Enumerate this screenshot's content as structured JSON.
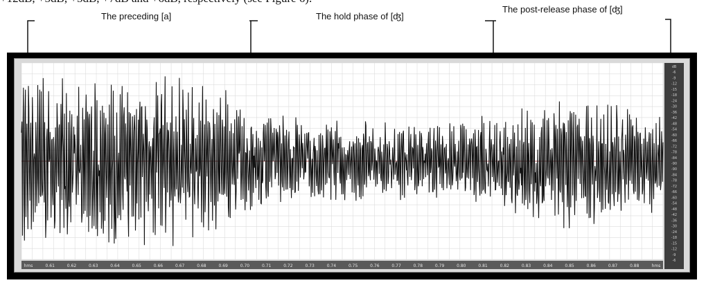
{
  "page": {
    "top_text": "+12dB, +5dB, +5dB, +7dB and +6dB, respectively (see Figure 6).",
    "annotations": [
      {
        "label": "The preceding [a]"
      },
      {
        "label": "The hold phase of [ʤ]"
      },
      {
        "label": "The post-release phase of [ʤ]"
      }
    ]
  },
  "figure": {
    "x_tick_labels": [
      "hms",
      "0.61",
      "0.62",
      "0.63",
      "0.64",
      "0.65",
      "0.66",
      "0.67",
      "0.68",
      "0.69",
      "0.70",
      "0.71",
      "0.72",
      "0.73",
      "0.74",
      "0.75",
      "0.76",
      "0.77",
      "0.78",
      "0.79",
      "0.80",
      "0.81",
      "0.82",
      "0.83",
      "0.84",
      "0.85",
      "0.86",
      "0.87",
      "0.88",
      "hms"
    ],
    "db_scale_labels": [
      "dB",
      "-6",
      "-9",
      "-12",
      "-15",
      "-18",
      "-24",
      "-30",
      "-36",
      "-42",
      "-48",
      "-54",
      "-60",
      "-66",
      "-72",
      "-78",
      "-84",
      "-90",
      "-90",
      "-84",
      "-78",
      "-72",
      "-66",
      "-60",
      "-54",
      "-48",
      "-42",
      "-36",
      "-30",
      "-24",
      "-18",
      "-15",
      "-12",
      "-9",
      "-6"
    ],
    "colors": {
      "frame": "#000000",
      "panel": "#d9d9d9",
      "plot_bg": "#ffffff",
      "grid": "#dcdcdc",
      "waveform": "#111111",
      "center_line": "#b05050",
      "scale_bg": "#3e3e3e"
    }
  },
  "chart_data": {
    "type": "line",
    "title": "",
    "xlabel": "",
    "ylabel": "",
    "x_unit": "s",
    "xlim": [
      0.6,
      0.89
    ],
    "series": [
      {
        "name": "",
        "description_points": [
          {
            "x": 0.6,
            "envelope": 0.95
          },
          {
            "x": 0.63,
            "envelope": 0.9
          },
          {
            "x": 0.66,
            "envelope": 0.92
          },
          {
            "x": 0.69,
            "envelope": 0.85
          },
          {
            "x": 0.7,
            "envelope": 0.55
          },
          {
            "x": 0.73,
            "envelope": 0.45
          },
          {
            "x": 0.76,
            "envelope": 0.42
          },
          {
            "x": 0.79,
            "envelope": 0.4
          },
          {
            "x": 0.82,
            "envelope": 0.55
          },
          {
            "x": 0.85,
            "envelope": 0.75
          },
          {
            "x": 0.88,
            "envelope": 0.55
          }
        ]
      }
    ],
    "grid": true
  }
}
